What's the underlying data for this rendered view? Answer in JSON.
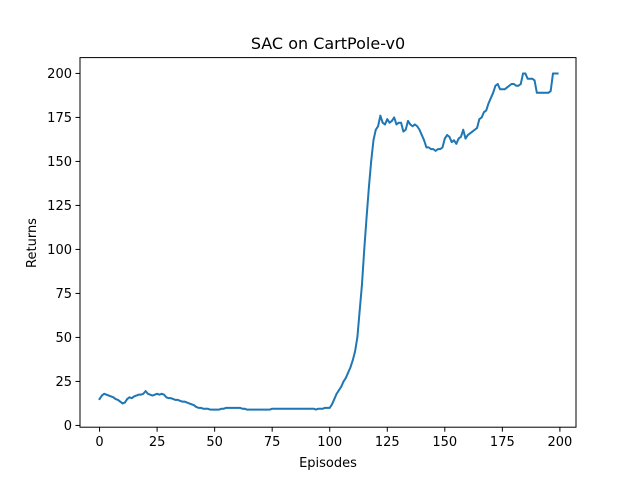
{
  "chart_data": {
    "type": "line",
    "title": "SAC on CartPole-v0",
    "xlabel": "Episodes",
    "ylabel": "Returns",
    "xlim": [
      -8.5,
      207
    ],
    "ylim": [
      -1,
      209
    ],
    "x_ticks": [
      0,
      25,
      50,
      75,
      100,
      125,
      150,
      175,
      200
    ],
    "y_ticks": [
      0,
      25,
      50,
      75,
      100,
      125,
      150,
      175,
      200
    ],
    "grid": false,
    "legend": "none",
    "series": [
      {
        "color": "#1f77b4",
        "points": [
          [
            0,
            15
          ],
          [
            1,
            17
          ],
          [
            2,
            18
          ],
          [
            3,
            17.5
          ],
          [
            4,
            17
          ],
          [
            5,
            16.5
          ],
          [
            6,
            16
          ],
          [
            7,
            15
          ],
          [
            8,
            14.5
          ],
          [
            9,
            13.5
          ],
          [
            10,
            12.5
          ],
          [
            11,
            13
          ],
          [
            12,
            15
          ],
          [
            13,
            16
          ],
          [
            14,
            15.5
          ],
          [
            15,
            16.5
          ],
          [
            16,
            17
          ],
          [
            17,
            17.5
          ],
          [
            18,
            17.5
          ],
          [
            19,
            18
          ],
          [
            20,
            19.5
          ],
          [
            21,
            18
          ],
          [
            22,
            17.5
          ],
          [
            23,
            17
          ],
          [
            24,
            17.5
          ],
          [
            25,
            18
          ],
          [
            26,
            17.5
          ],
          [
            27,
            18
          ],
          [
            28,
            17.5
          ],
          [
            29,
            16
          ],
          [
            30,
            15.5
          ],
          [
            31,
            15.5
          ],
          [
            32,
            15
          ],
          [
            33,
            14.5
          ],
          [
            34,
            14.5
          ],
          [
            35,
            14
          ],
          [
            36,
            13.5
          ],
          [
            37,
            13.5
          ],
          [
            38,
            13
          ],
          [
            39,
            12.5
          ],
          [
            40,
            12
          ],
          [
            41,
            11.5
          ],
          [
            42,
            10.5
          ],
          [
            43,
            10
          ],
          [
            44,
            10
          ],
          [
            45,
            9.5
          ],
          [
            46,
            9.5
          ],
          [
            47,
            9.5
          ],
          [
            48,
            9
          ],
          [
            49,
            9
          ],
          [
            50,
            9
          ],
          [
            51,
            9
          ],
          [
            52,
            9
          ],
          [
            53,
            9.5
          ],
          [
            54,
            9.5
          ],
          [
            55,
            10
          ],
          [
            56,
            10
          ],
          [
            57,
            10
          ],
          [
            58,
            10
          ],
          [
            59,
            10
          ],
          [
            60,
            10
          ],
          [
            61,
            10
          ],
          [
            62,
            9.5
          ],
          [
            63,
            9.5
          ],
          [
            64,
            9
          ],
          [
            65,
            9
          ],
          [
            66,
            9
          ],
          [
            67,
            9
          ],
          [
            68,
            9
          ],
          [
            69,
            9
          ],
          [
            70,
            9
          ],
          [
            71,
            9
          ],
          [
            72,
            9
          ],
          [
            73,
            9
          ],
          [
            74,
            9
          ],
          [
            75,
            9.5
          ],
          [
            76,
            9.5
          ],
          [
            77,
            9.5
          ],
          [
            78,
            9.5
          ],
          [
            79,
            9.5
          ],
          [
            80,
            9.5
          ],
          [
            81,
            9.5
          ],
          [
            82,
            9.5
          ],
          [
            83,
            9.5
          ],
          [
            84,
            9.5
          ],
          [
            85,
            9.5
          ],
          [
            86,
            9.5
          ],
          [
            87,
            9.5
          ],
          [
            88,
            9.5
          ],
          [
            89,
            9.5
          ],
          [
            90,
            9.5
          ],
          [
            91,
            9.5
          ],
          [
            92,
            9.5
          ],
          [
            93,
            9.5
          ],
          [
            94,
            9
          ],
          [
            95,
            9.5
          ],
          [
            96,
            9.5
          ],
          [
            97,
            9.5
          ],
          [
            98,
            10
          ],
          [
            99,
            10
          ],
          [
            100,
            10
          ],
          [
            101,
            12
          ],
          [
            102,
            15
          ],
          [
            103,
            18
          ],
          [
            104,
            20
          ],
          [
            105,
            22
          ],
          [
            106,
            25
          ],
          [
            107,
            27
          ],
          [
            108,
            30
          ],
          [
            109,
            33
          ],
          [
            110,
            37
          ],
          [
            111,
            42
          ],
          [
            112,
            50
          ],
          [
            113,
            65
          ],
          [
            114,
            80
          ],
          [
            115,
            100
          ],
          [
            116,
            118
          ],
          [
            117,
            135
          ],
          [
            118,
            150
          ],
          [
            119,
            162
          ],
          [
            120,
            168
          ],
          [
            121,
            170
          ],
          [
            122,
            176
          ],
          [
            123,
            172
          ],
          [
            124,
            171
          ],
          [
            125,
            174
          ],
          [
            126,
            172
          ],
          [
            127,
            173
          ],
          [
            128,
            175
          ],
          [
            129,
            171
          ],
          [
            130,
            172
          ],
          [
            131,
            172
          ],
          [
            132,
            167
          ],
          [
            133,
            168
          ],
          [
            134,
            173
          ],
          [
            135,
            171
          ],
          [
            136,
            170
          ],
          [
            137,
            171
          ],
          [
            138,
            170
          ],
          [
            139,
            168
          ],
          [
            140,
            165
          ],
          [
            141,
            162
          ],
          [
            142,
            158
          ],
          [
            143,
            158
          ],
          [
            144,
            157
          ],
          [
            145,
            157
          ],
          [
            146,
            156
          ],
          [
            147,
            157
          ],
          [
            148,
            157
          ],
          [
            149,
            158
          ],
          [
            150,
            163
          ],
          [
            151,
            165
          ],
          [
            152,
            164
          ],
          [
            153,
            161
          ],
          [
            154,
            162
          ],
          [
            155,
            160
          ],
          [
            156,
            163
          ],
          [
            157,
            164
          ],
          [
            158,
            168
          ],
          [
            159,
            163
          ],
          [
            160,
            165
          ],
          [
            161,
            166
          ],
          [
            162,
            167
          ],
          [
            163,
            168
          ],
          [
            164,
            169
          ],
          [
            165,
            174
          ],
          [
            166,
            175
          ],
          [
            167,
            178
          ],
          [
            168,
            179
          ],
          [
            169,
            183
          ],
          [
            170,
            186
          ],
          [
            171,
            189
          ],
          [
            172,
            193
          ],
          [
            173,
            194
          ],
          [
            174,
            191
          ],
          [
            175,
            191
          ],
          [
            176,
            191
          ],
          [
            177,
            192
          ],
          [
            178,
            193
          ],
          [
            179,
            194
          ],
          [
            180,
            194
          ],
          [
            181,
            193
          ],
          [
            182,
            193
          ],
          [
            183,
            194
          ],
          [
            184,
            200
          ],
          [
            185,
            200
          ],
          [
            186,
            197
          ],
          [
            187,
            197
          ],
          [
            188,
            197
          ],
          [
            189,
            196
          ],
          [
            190,
            189
          ],
          [
            191,
            189
          ],
          [
            192,
            189
          ],
          [
            193,
            189
          ],
          [
            194,
            189
          ],
          [
            195,
            189
          ],
          [
            196,
            190
          ],
          [
            197,
            200
          ],
          [
            198,
            200
          ],
          [
            199,
            200
          ]
        ]
      }
    ]
  }
}
